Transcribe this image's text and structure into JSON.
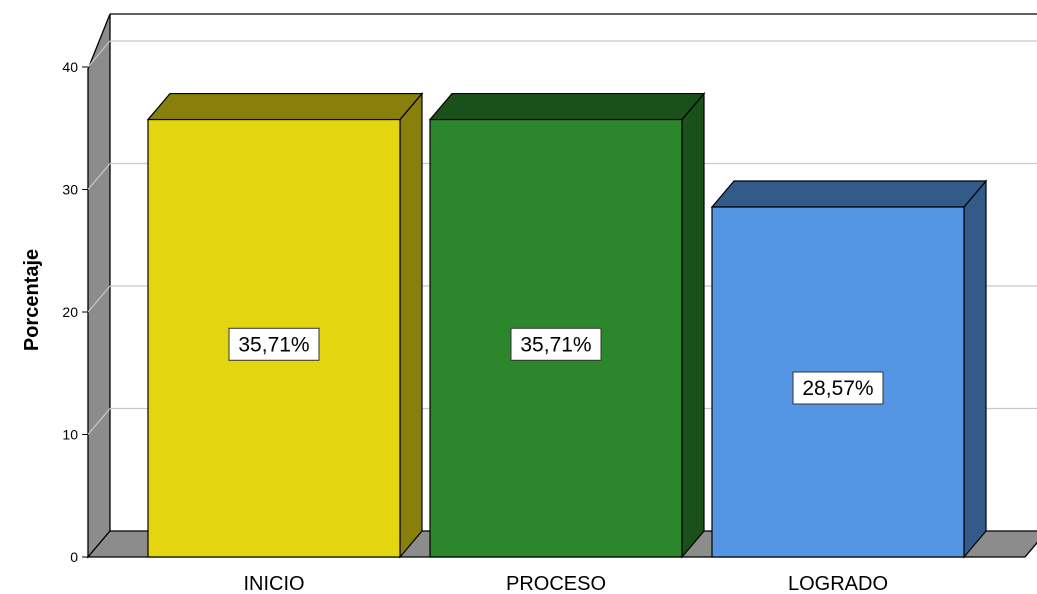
{
  "chart_data": {
    "type": "bar",
    "categories": [
      "INICIO",
      "PROCESO",
      "LOGRADO"
    ],
    "values": [
      35.71,
      35.71,
      28.57
    ],
    "data_labels": [
      "35,71%",
      "35,71%",
      "28,57%"
    ],
    "bar_colors": [
      "#e3d611",
      "#2c862c",
      "#5596e4"
    ],
    "ylabel": "Porcentaje",
    "xlabel": "",
    "ylim": [
      0,
      40
    ],
    "yticks": [
      "0",
      "10",
      "20",
      "30",
      "40"
    ],
    "grid": true,
    "style": "3d"
  }
}
